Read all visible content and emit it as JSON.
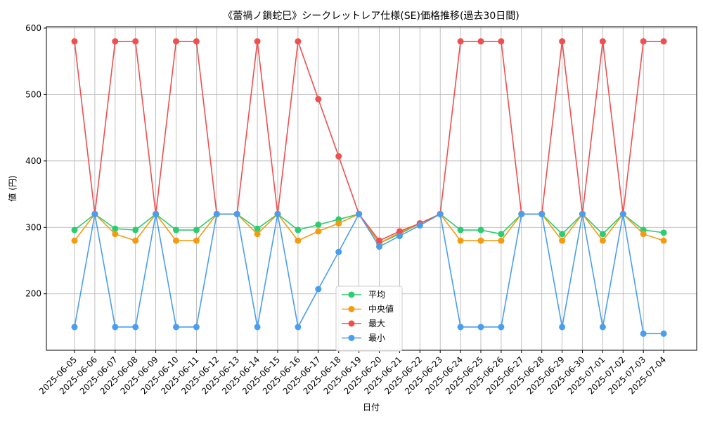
{
  "chart_data": {
    "type": "line",
    "title": "《蕾禍ノ鎖蛇巳》シークレットレア仕様(SE)価格推移(過去30日間)",
    "xlabel": "日付",
    "ylabel": "値 (円)",
    "ylim": [
      115,
      602
    ],
    "yticks": [
      200,
      300,
      400,
      500,
      600
    ],
    "grid": true,
    "legend_position": "bottom-center",
    "categories": [
      "2025-06-05",
      "2025-06-06",
      "2025-06-07",
      "2025-06-08",
      "2025-06-09",
      "2025-06-10",
      "2025-06-11",
      "2025-06-12",
      "2025-06-13",
      "2025-06-14",
      "2025-06-15",
      "2025-06-16",
      "2025-06-17",
      "2025-06-18",
      "2025-06-19",
      "2025-06-20",
      "2025-06-21",
      "2025-06-22",
      "2025-06-23",
      "2025-06-24",
      "2025-06-25",
      "2025-06-26",
      "2025-06-27",
      "2025-06-28",
      "2025-06-29",
      "2025-06-30",
      "2025-07-01",
      "2025-07-02",
      "2025-07-03",
      "2025-07-04"
    ],
    "series": [
      {
        "name": "平均",
        "color": "#2ecc71",
        "values": [
          296,
          320,
          298,
          296,
          320,
          296,
          296,
          320,
          320,
          298,
          320,
          296,
          304,
          312,
          320,
          276,
          290,
          306,
          320,
          296,
          296,
          290,
          320,
          320,
          290,
          320,
          290,
          320,
          296,
          292
        ]
      },
      {
        "name": "中央値",
        "color": "#f39c12",
        "values": [
          280,
          320,
          290,
          280,
          320,
          280,
          280,
          320,
          320,
          290,
          320,
          280,
          294,
          306,
          320,
          276,
          292,
          306,
          320,
          280,
          280,
          280,
          320,
          320,
          280,
          320,
          280,
          320,
          290,
          280
        ]
      },
      {
        "name": "最大",
        "color": "#ef4f4f",
        "values": [
          580,
          320,
          580,
          580,
          320,
          580,
          580,
          320,
          320,
          580,
          320,
          580,
          493,
          407,
          320,
          280,
          294,
          306,
          320,
          580,
          580,
          580,
          320,
          320,
          580,
          320,
          580,
          320,
          580,
          580
        ]
      },
      {
        "name": "最小",
        "color": "#4a9ef0",
        "values": [
          150,
          320,
          150,
          150,
          320,
          150,
          150,
          320,
          320,
          150,
          320,
          150,
          207,
          263,
          320,
          271,
          287,
          303,
          320,
          150,
          150,
          150,
          320,
          320,
          150,
          320,
          150,
          320,
          140,
          140
        ]
      }
    ]
  }
}
